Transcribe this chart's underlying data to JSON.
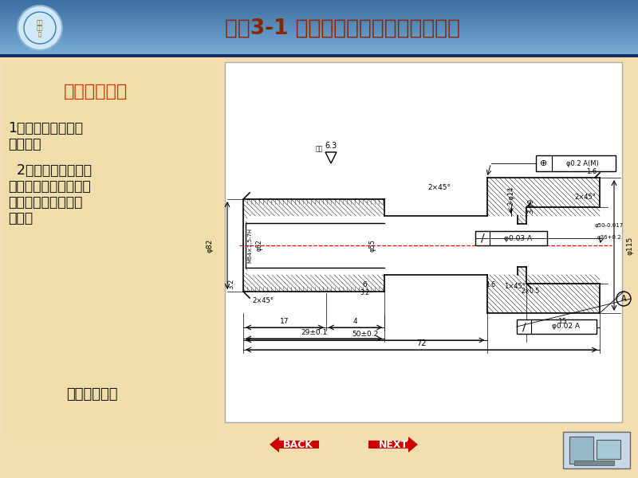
{
  "title": "情境3-1 法兰盘零件车削加工工艺编制",
  "title_color": "#8B2500",
  "body_bg": "#f2deb0",
  "left_panel_title": "情境工作任务",
  "left_panel_title_color": "#cc3300",
  "left_text_lines": [
    "1．分析法兰盘零件",
    "工艺性；",
    "  2．编制图法兰盘零",
    "件机械加工工艺文件，",
    "确定加工路线和装夹",
    "方案。"
  ],
  "left_bottom_text": "法兰盘零件图",
  "header_color1": "#3a6fa0",
  "header_color2": "#7ab0d8",
  "underline_color": "#1a3060"
}
